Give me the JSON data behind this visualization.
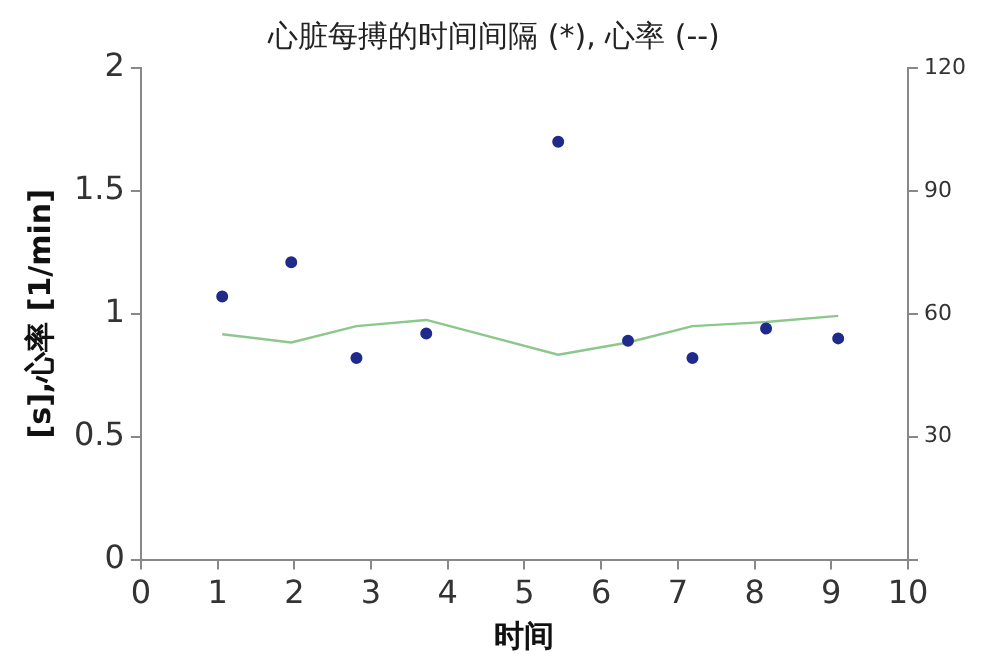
{
  "chart_data": {
    "type": "scatter",
    "title": "心脏每搏的时间间隔 (*), 心率 (--)",
    "xlabel": "时间",
    "ylabel": "[s],心率 [1/min]",
    "series": [
      {
        "type": "scatter",
        "color": "#1f2a8a",
        "marker": "circle",
        "x": [
          1.06,
          1.96,
          2.81,
          3.72,
          5.44,
          6.35,
          7.19,
          8.15,
          9.09
        ],
        "values": [
          1.07,
          1.21,
          0.82,
          0.92,
          1.7,
          0.89,
          0.82,
          0.94,
          0.9
        ]
      },
      {
        "type": "line",
        "axis": "y2",
        "color": "#8cc88c",
        "marker": "none",
        "x": [
          1.06,
          1.96,
          2.81,
          3.72,
          5.44,
          6.35,
          7.19,
          8.15,
          9.09
        ],
        "values": [
          55,
          53,
          57,
          58.5,
          50,
          53,
          57,
          58,
          59.5
        ]
      }
    ],
    "xlim": [
      0,
      10
    ],
    "xticks": [
      0,
      1,
      2,
      3,
      4,
      5,
      6,
      7,
      8,
      9,
      10
    ],
    "ylim": [
      0,
      2
    ],
    "yticks": [
      0,
      0.5,
      1,
      1.5,
      2
    ],
    "y2lim": [
      0,
      120
    ],
    "y2ticks": [
      {
        "value": 0,
        "label": null
      },
      30,
      60,
      90,
      120
    ],
    "grid": false,
    "legend": false
  }
}
